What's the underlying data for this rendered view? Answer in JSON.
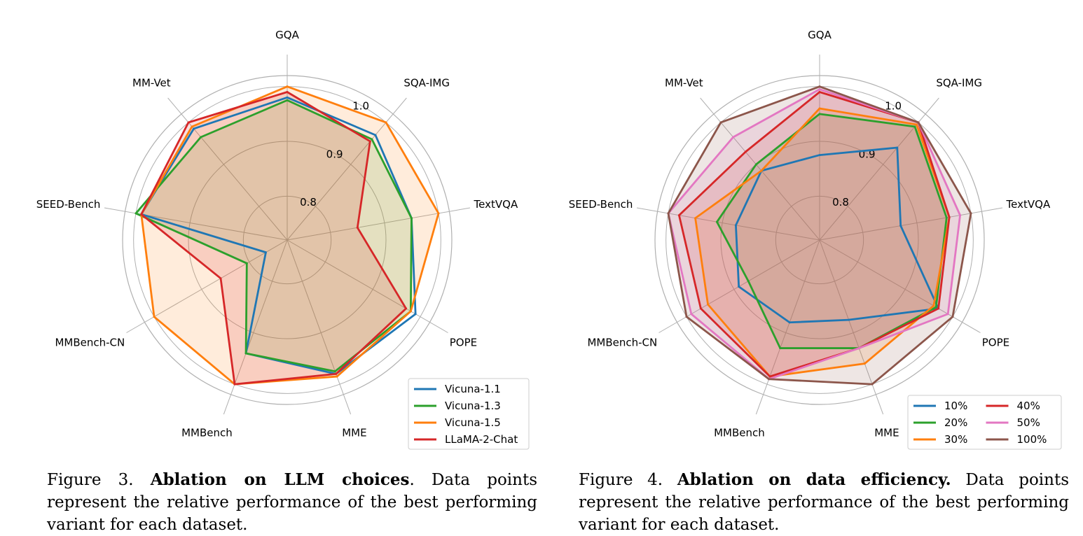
{
  "chart_data": [
    {
      "type": "radar",
      "categories": [
        "GQA",
        "SQA-IMG",
        "TextVQA",
        "POPE",
        "MME",
        "MMBench",
        "MMBench-CN",
        "SEED-Bench",
        "MM-Vet"
      ],
      "tick_labels": [
        "0.8",
        "0.9",
        "1.0"
      ],
      "rlim": [
        0.72,
        1.02
      ],
      "grid": true,
      "legend": {
        "position": "bottom-right",
        "columns": 1
      },
      "series": [
        {
          "name": "Vicuna-1.1",
          "color": "#1f77b4",
          "fill": false,
          "values": [
            0.98,
            0.97,
            0.95,
            0.99,
            0.98,
            0.94,
            0.765,
            0.99,
            0.985
          ]
        },
        {
          "name": "Vicuna-1.3",
          "color": "#2ca02c",
          "fill": true,
          "values": [
            0.975,
            0.96,
            0.95,
            0.98,
            0.975,
            0.94,
            0.805,
            1.0,
            0.965
          ]
        },
        {
          "name": "Vicuna-1.5",
          "color": "#ff7f0e",
          "fill": true,
          "values": [
            1.0,
            1.0,
            1.0,
            0.98,
            0.985,
            1.0,
            1.0,
            0.99,
            0.99
          ]
        },
        {
          "name": "LLaMA-2-Chat",
          "color": "#d62728",
          "fill": true,
          "values": [
            0.99,
            0.955,
            0.85,
            0.97,
            0.98,
            1.0,
            0.86,
            0.99,
            1.0
          ]
        }
      ]
    },
    {
      "type": "radar",
      "categories": [
        "GQA",
        "SQA-IMG",
        "TextVQA",
        "POPE",
        "MME",
        "MMBench",
        "MMBench-CN",
        "SEED-Bench",
        "MM-Vet"
      ],
      "tick_labels": [
        "0.8",
        "0.9",
        "1.0"
      ],
      "rlim": [
        0.72,
        1.02
      ],
      "grid": true,
      "legend": {
        "position": "bottom-right",
        "columns": 2
      },
      "series": [
        {
          "name": "10%",
          "color": "#1f77b4",
          "fill": false,
          "values": [
            0.875,
            0.94,
            0.87,
            0.97,
            0.875,
            0.88,
            0.89,
            0.875,
            0.885
          ]
        },
        {
          "name": "20%",
          "color": "#2ca02c",
          "fill": true,
          "values": [
            0.95,
            0.99,
            0.955,
            0.965,
            0.93,
            0.93,
            0.87,
            0.91,
            0.9
          ]
        },
        {
          "name": "30%",
          "color": "#ff7f0e",
          "fill": true,
          "values": [
            0.96,
            0.995,
            0.96,
            0.96,
            0.96,
            0.985,
            0.955,
            0.95,
            0.885
          ]
        },
        {
          "name": "40%",
          "color": "#d62728",
          "fill": true,
          "values": [
            0.99,
            1.0,
            0.96,
            0.97,
            0.93,
            0.985,
            0.97,
            0.98,
            0.93
          ]
        },
        {
          "name": "50%",
          "color": "#e377c2",
          "fill": true,
          "values": [
            0.995,
            1.0,
            0.98,
            0.99,
            0.93,
            0.99,
            0.99,
            1.0,
            0.965
          ]
        },
        {
          "name": "100%",
          "color": "#8c564b",
          "fill": true,
          "values": [
            1.0,
            1.0,
            1.0,
            1.0,
            1.0,
            0.99,
            1.0,
            1.0,
            1.0
          ]
        }
      ]
    }
  ],
  "captions": [
    {
      "label": "Figure 3.",
      "bold": "Ablation on LLM choices",
      "rest": ". Data points represent the relative performance of the best performing variant for each dataset."
    },
    {
      "label": "Figure 4.",
      "bold": "Ablation on data efficiency.",
      "rest": " Data points represent the relative performance of the best performing variant for each dataset."
    }
  ]
}
